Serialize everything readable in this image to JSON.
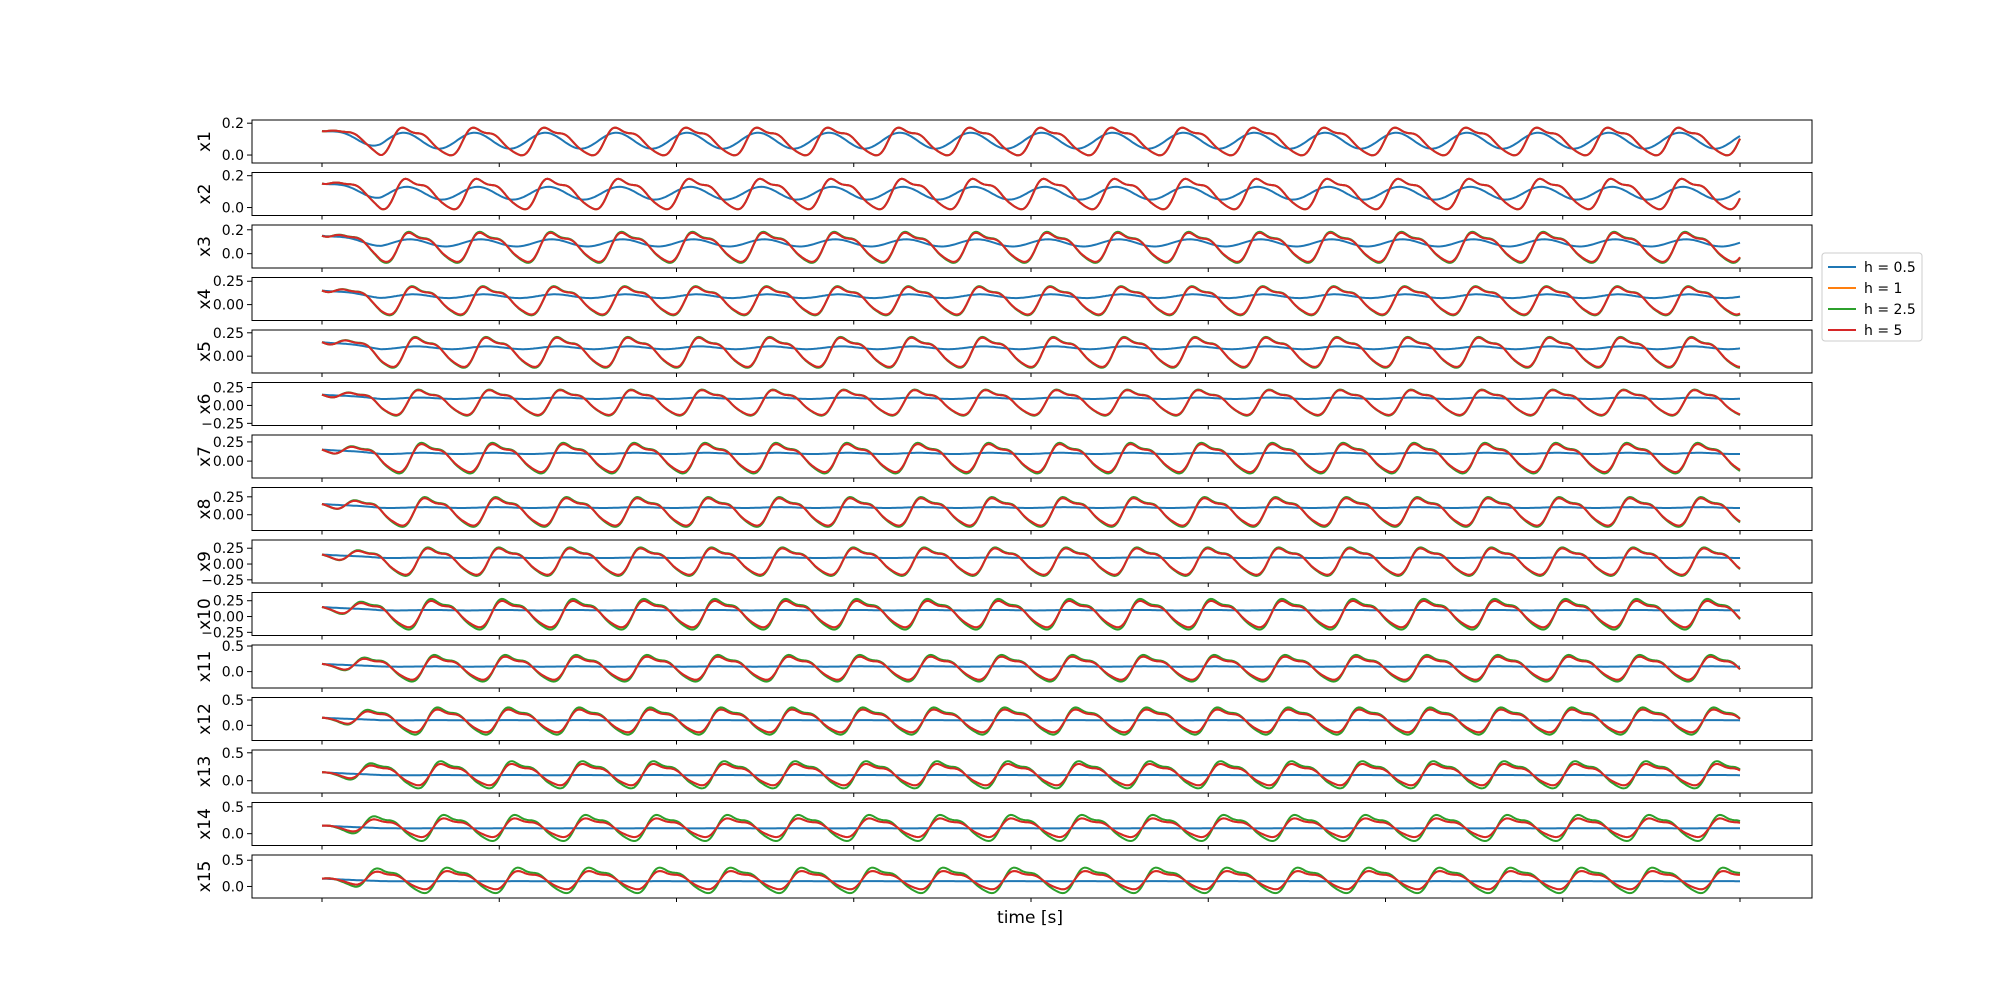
{
  "chart_data": {
    "type": "line",
    "xlabel": "time [s]",
    "x_tick_labels_visible": false,
    "legend": {
      "placement": "right",
      "entries": [
        "h = 0.5",
        "h = 1",
        "h = 2.5",
        "h = 5"
      ]
    },
    "series_colors": {
      "h = 0.5": "#1f77b4",
      "h = 1": "#ff7f0e",
      "h = 2.5": "#2ca02c",
      "h = 5": "#d62728"
    },
    "oscillation_periods_shown": 20,
    "panels": [
      {
        "ylabel": "x1",
        "ylim": [
          -0.05,
          0.22
        ],
        "yticks": [
          "0.0",
          "0.2"
        ],
        "ytick_values": [
          0.0,
          0.2
        ],
        "series": {
          "h = 0.5": {
            "mean": 0.09,
            "amp": 0.05
          },
          "h = 1": {
            "mean": 0.09,
            "amp": 0.1
          },
          "h = 2.5": {
            "mean": 0.09,
            "amp": 0.1
          },
          "h = 5": {
            "mean": 0.09,
            "amp": 0.1
          }
        }
      },
      {
        "ylabel": "x2",
        "ylim": [
          -0.05,
          0.22
        ],
        "yticks": [
          "0.0",
          "0.2"
        ],
        "ytick_values": [
          0.0,
          0.2
        ],
        "series": {
          "h = 0.5": {
            "mean": 0.09,
            "amp": 0.04
          },
          "h = 1": {
            "mean": 0.09,
            "amp": 0.11
          },
          "h = 2.5": {
            "mean": 0.09,
            "amp": 0.11
          },
          "h = 5": {
            "mean": 0.09,
            "amp": 0.11
          }
        }
      },
      {
        "ylabel": "x3",
        "ylim": [
          -0.12,
          0.24
        ],
        "yticks": [
          "0.0",
          "0.2"
        ],
        "ytick_values": [
          0.0,
          0.2
        ],
        "series": {
          "h = 0.5": {
            "mean": 0.09,
            "amp": 0.03
          },
          "h = 1": {
            "mean": 0.06,
            "amp": 0.14
          },
          "h = 2.5": {
            "mean": 0.06,
            "amp": 0.15
          },
          "h = 5": {
            "mean": 0.06,
            "amp": 0.14
          }
        }
      },
      {
        "ylabel": "x4",
        "ylim": [
          -0.17,
          0.29
        ],
        "yticks": [
          "0.00",
          "0.25"
        ],
        "ytick_values": [
          0.0,
          0.25
        ],
        "series": {
          "h = 0.5": {
            "mean": 0.09,
            "amp": 0.02
          },
          "h = 1": {
            "mean": 0.05,
            "amp": 0.17
          },
          "h = 2.5": {
            "mean": 0.05,
            "amp": 0.18
          },
          "h = 5": {
            "mean": 0.05,
            "amp": 0.17
          }
        }
      },
      {
        "ylabel": "x5",
        "ylim": [
          -0.18,
          0.28
        ],
        "yticks": [
          "0.00",
          "0.25"
        ],
        "ytick_values": [
          0.0,
          0.25
        ],
        "series": {
          "h = 0.5": {
            "mean": 0.09,
            "amp": 0.015
          },
          "h = 1": {
            "mean": 0.05,
            "amp": 0.18
          },
          "h = 2.5": {
            "mean": 0.05,
            "amp": 0.19
          },
          "h = 5": {
            "mean": 0.05,
            "amp": 0.18
          }
        }
      },
      {
        "ylabel": "x6",
        "ylim": [
          -0.28,
          0.32
        ],
        "yticks": [
          "0.25",
          "0.00",
          "−0.25"
        ],
        "ytick_values": [
          0.25,
          0.0,
          -0.25
        ],
        "series": {
          "h = 0.5": {
            "mean": 0.1,
            "amp": 0.01
          },
          "h = 1": {
            "mean": 0.05,
            "amp": 0.2
          },
          "h = 2.5": {
            "mean": 0.05,
            "amp": 0.21
          },
          "h = 5": {
            "mean": 0.05,
            "amp": 0.2
          }
        }
      },
      {
        "ylabel": "x7",
        "ylim": [
          -0.22,
          0.34
        ],
        "yticks": [
          "0.25",
          "0.00"
        ],
        "ytick_values": [
          0.25,
          0.0
        ],
        "series": {
          "h = 0.5": {
            "mean": 0.1,
            "amp": 0.008
          },
          "h = 1": {
            "mean": 0.05,
            "amp": 0.21
          },
          "h = 2.5": {
            "mean": 0.05,
            "amp": 0.23
          },
          "h = 5": {
            "mean": 0.05,
            "amp": 0.21
          }
        }
      },
      {
        "ylabel": "x8",
        "ylim": [
          -0.22,
          0.38
        ],
        "yticks": [
          "0.25",
          "0.00"
        ],
        "ytick_values": [
          0.25,
          0.0
        ],
        "series": {
          "h = 0.5": {
            "mean": 0.1,
            "amp": 0.006
          },
          "h = 1": {
            "mean": 0.05,
            "amp": 0.22
          },
          "h = 2.5": {
            "mean": 0.05,
            "amp": 0.24
          },
          "h = 5": {
            "mean": 0.05,
            "amp": 0.22
          }
        }
      },
      {
        "ylabel": "x9",
        "ylim": [
          -0.3,
          0.38
        ],
        "yticks": [
          "0.25",
          "0.00",
          "−0.25"
        ],
        "ytick_values": [
          0.25,
          0.0,
          -0.25
        ],
        "series": {
          "h = 0.5": {
            "mean": 0.1,
            "amp": 0.005
          },
          "h = 1": {
            "mean": 0.05,
            "amp": 0.24
          },
          "h = 2.5": {
            "mean": 0.05,
            "amp": 0.26
          },
          "h = 5": {
            "mean": 0.05,
            "amp": 0.24
          }
        }
      },
      {
        "ylabel": "x10",
        "ylim": [
          -0.3,
          0.38
        ],
        "yticks": [
          "0.25",
          "0.00",
          "−0.25"
        ],
        "ytick_values": [
          0.25,
          0.0,
          -0.25
        ],
        "series": {
          "h = 0.5": {
            "mean": 0.1,
            "amp": 0.004
          },
          "h = 1": {
            "mean": 0.05,
            "amp": 0.24
          },
          "h = 2.5": {
            "mean": 0.05,
            "amp": 0.28
          },
          "h = 5": {
            "mean": 0.05,
            "amp": 0.24
          }
        }
      },
      {
        "ylabel": "x11",
        "ylim": [
          -0.32,
          0.52
        ],
        "yticks": [
          "0.5",
          "0.0"
        ],
        "ytick_values": [
          0.5,
          0.0
        ],
        "series": {
          "h = 0.5": {
            "mean": 0.1,
            "amp": 0.003
          },
          "h = 1": {
            "mean": 0.08,
            "amp": 0.26
          },
          "h = 2.5": {
            "mean": 0.08,
            "amp": 0.3
          },
          "h = 5": {
            "mean": 0.08,
            "amp": 0.26
          }
        }
      },
      {
        "ylabel": "x12",
        "ylim": [
          -0.3,
          0.55
        ],
        "yticks": [
          "0.5",
          "0.0"
        ],
        "ytick_values": [
          0.5,
          0.0
        ],
        "series": {
          "h = 0.5": {
            "mean": 0.1,
            "amp": 0.003
          },
          "h = 1": {
            "mean": 0.1,
            "amp": 0.26
          },
          "h = 2.5": {
            "mean": 0.1,
            "amp": 0.31
          },
          "h = 5": {
            "mean": 0.1,
            "amp": 0.26
          }
        }
      },
      {
        "ylabel": "x13",
        "ylim": [
          -0.22,
          0.55
        ],
        "yticks": [
          "0.5",
          "0.0"
        ],
        "ytick_values": [
          0.5,
          0.0
        ],
        "series": {
          "h = 0.5": {
            "mean": 0.1,
            "amp": 0.002
          },
          "h = 1": {
            "mean": 0.12,
            "amp": 0.22
          },
          "h = 2.5": {
            "mean": 0.12,
            "amp": 0.28
          },
          "h = 5": {
            "mean": 0.12,
            "amp": 0.22
          }
        }
      },
      {
        "ylabel": "x14",
        "ylim": [
          -0.22,
          0.58
        ],
        "yticks": [
          "0.5",
          "0.0"
        ],
        "ytick_values": [
          0.5,
          0.0
        ],
        "series": {
          "h = 0.5": {
            "mean": 0.1,
            "amp": 0.002
          },
          "h = 1": {
            "mean": 0.12,
            "amp": 0.2
          },
          "h = 2.5": {
            "mean": 0.12,
            "amp": 0.28
          },
          "h = 5": {
            "mean": 0.12,
            "amp": 0.2
          }
        }
      },
      {
        "ylabel": "x15",
        "ylim": [
          -0.22,
          0.6
        ],
        "yticks": [
          "0.5",
          "0.0"
        ],
        "ytick_values": [
          0.5,
          0.0
        ],
        "series": {
          "h = 0.5": {
            "mean": 0.1,
            "amp": 0.002
          },
          "h = 1": {
            "mean": 0.13,
            "amp": 0.2
          },
          "h = 2.5": {
            "mean": 0.13,
            "amp": 0.28
          },
          "h = 5": {
            "mean": 0.13,
            "amp": 0.2
          }
        }
      }
    ]
  }
}
